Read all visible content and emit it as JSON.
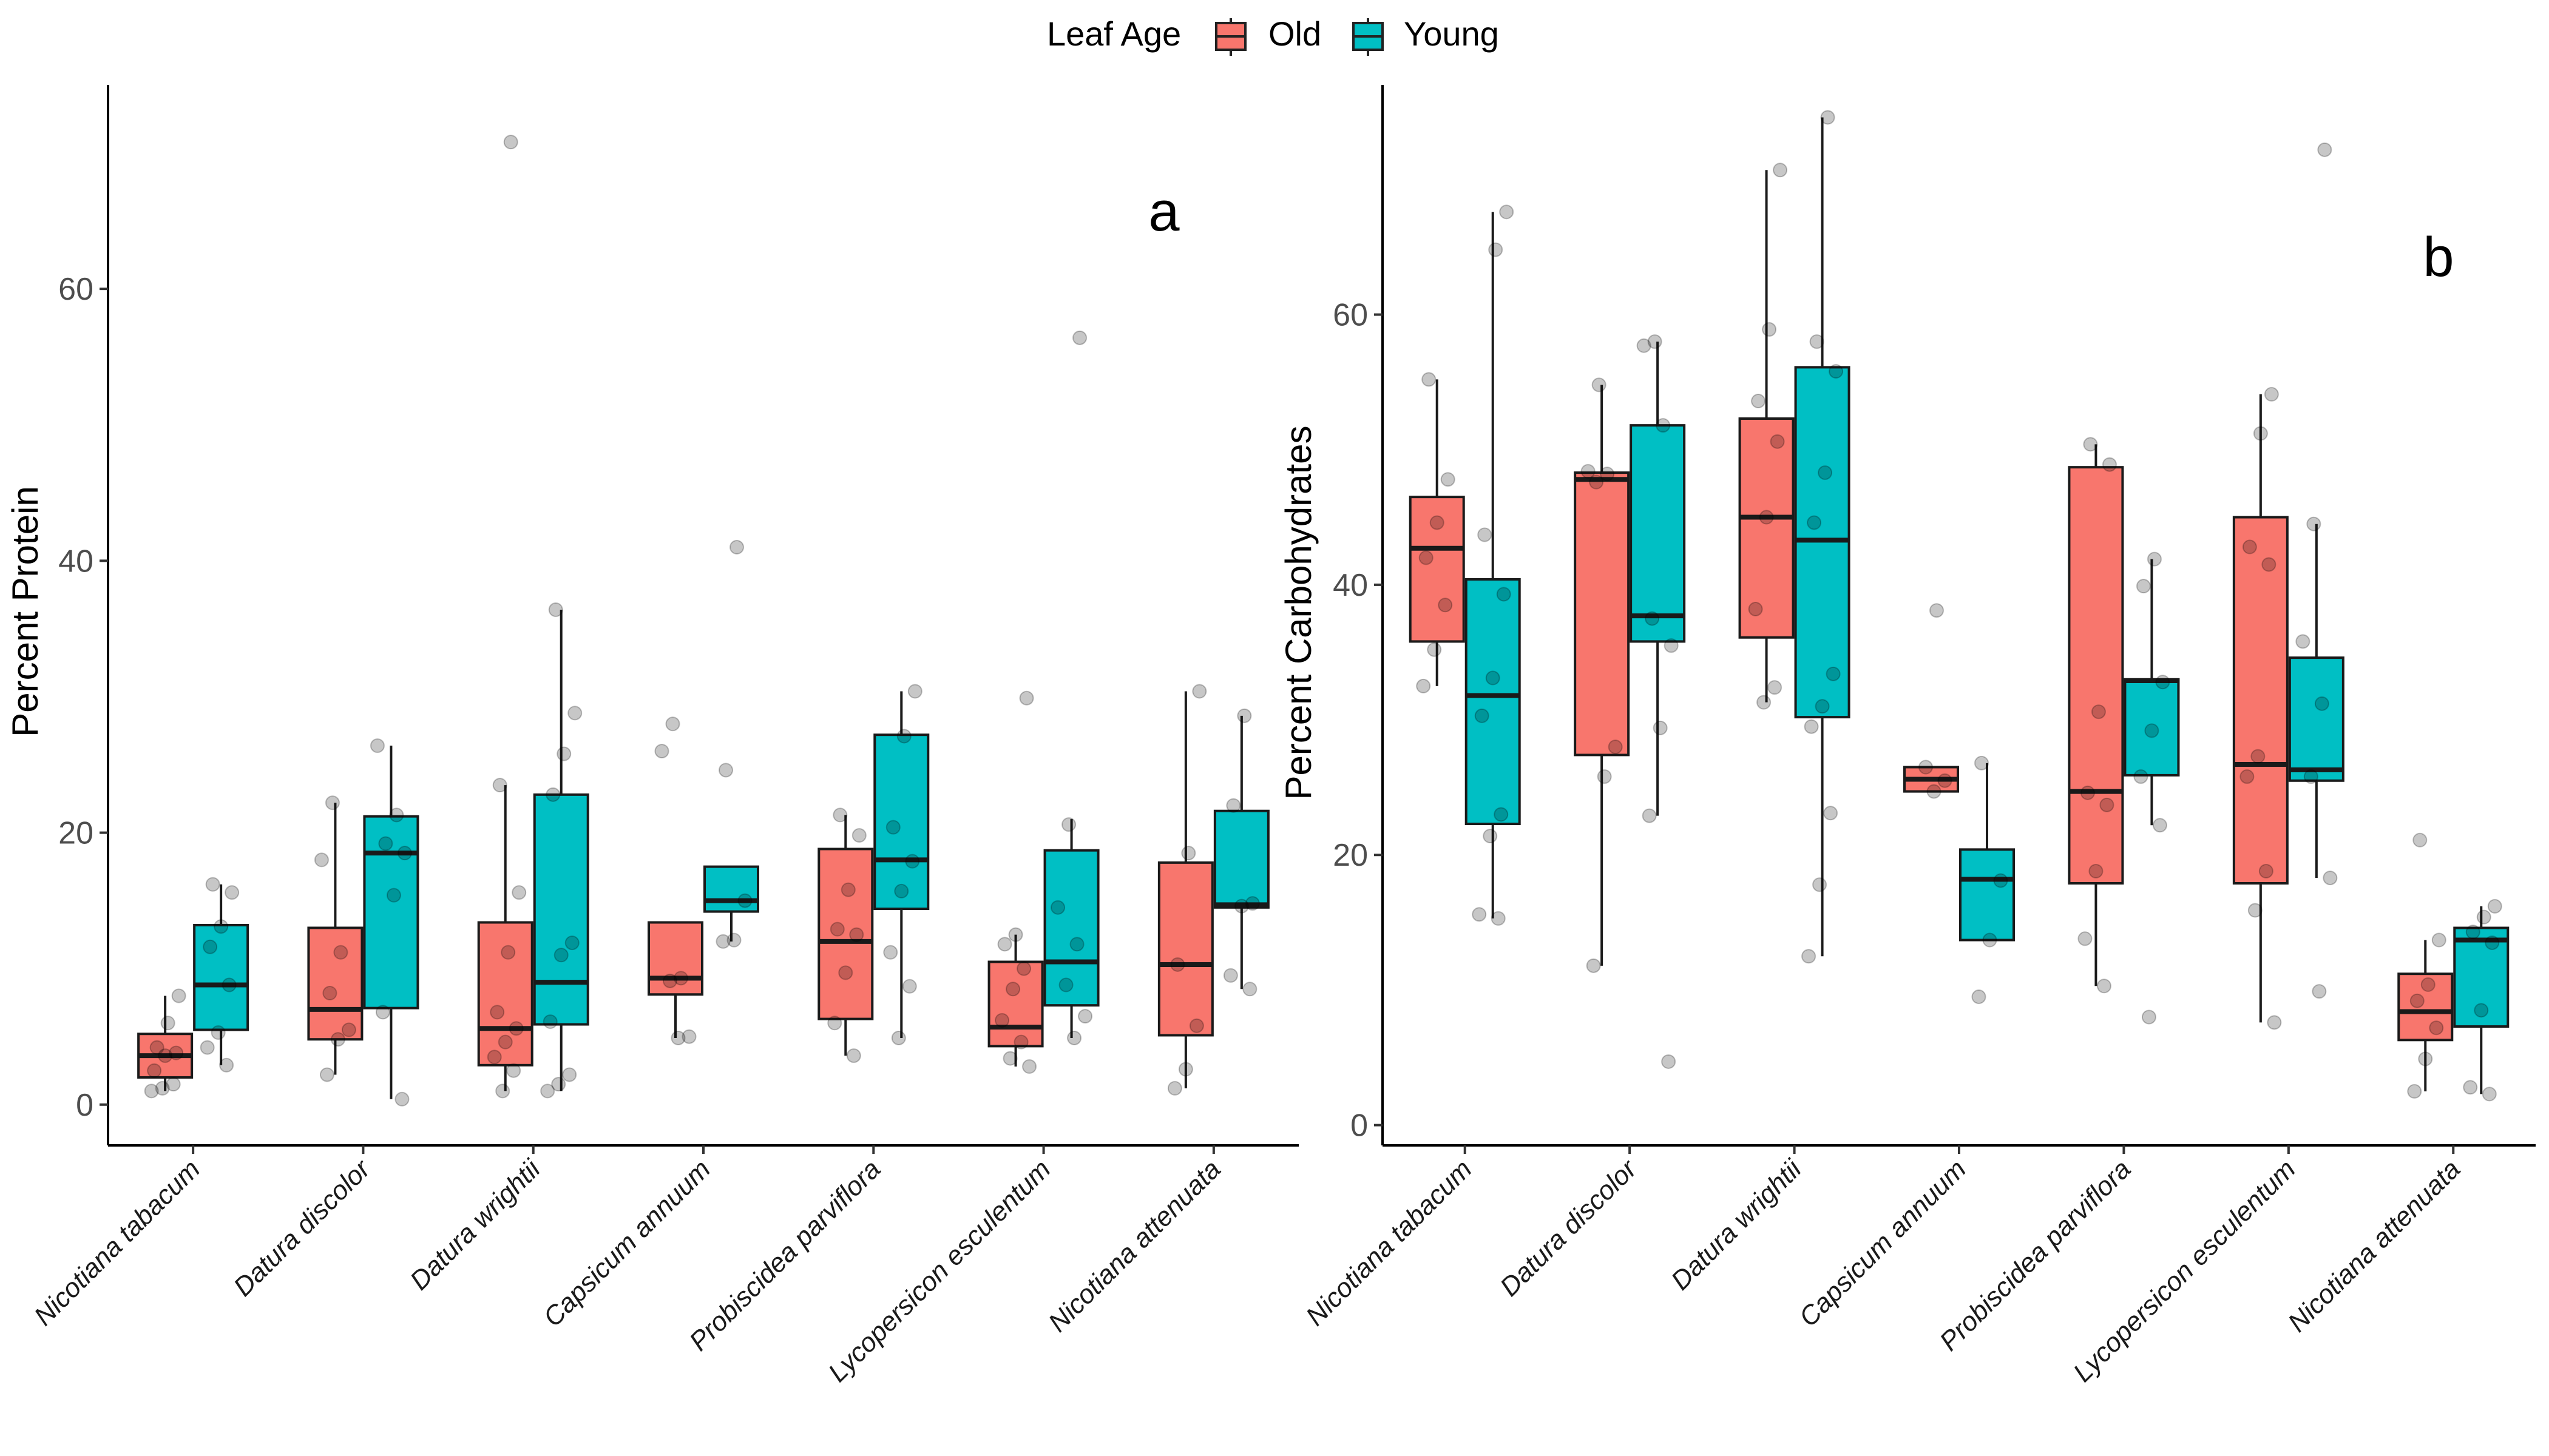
{
  "legend": {
    "title": "Leaf Age",
    "items": [
      {
        "label": "Old",
        "color": "#F8766D"
      },
      {
        "label": "Young",
        "color": "#00BFC4"
      }
    ]
  },
  "chart_data": [
    {
      "type": "box",
      "panel_label": "a",
      "ylabel": "Percent Protein",
      "xlabel": "",
      "ylim": [
        -3,
        75
      ],
      "yticks": [
        0,
        20,
        40,
        60
      ],
      "grid": false,
      "legend_position": "top",
      "categories": [
        "Nicotiana tabacum",
        "Datura discolor",
        "Datura wrightii",
        "Capsicum annuum",
        "Probiscidea parviflora",
        "Lycopersicon esculentum",
        "Nicotiana attenuata"
      ],
      "series": [
        {
          "name": "Old",
          "boxes": [
            {
              "min": 1.0,
              "q1": 2.0,
              "median": 3.6,
              "q3": 5.2,
              "max": 8.0,
              "points": [
                1.0,
                1.2,
                1.5,
                2.5,
                3.6,
                3.8,
                4.2,
                6.0,
                8.0
              ]
            },
            {
              "min": 2.2,
              "q1": 4.8,
              "median": 7.0,
              "q3": 13.0,
              "max": 22.2,
              "points": [
                2.2,
                4.8,
                5.5,
                8.2,
                11.2,
                18.0,
                22.2
              ]
            },
            {
              "min": 1.0,
              "q1": 2.9,
              "median": 5.6,
              "q3": 13.4,
              "max": 23.5,
              "points": [
                1.0,
                2.5,
                3.5,
                4.6,
                5.6,
                6.8,
                11.2,
                15.6,
                23.5,
                70.8
              ]
            },
            {
              "min": 4.9,
              "q1": 8.1,
              "median": 9.3,
              "q3": 13.4,
              "max": 13.4,
              "points": [
                4.9,
                5.0,
                9.1,
                9.3,
                26.0,
                28.0
              ]
            },
            {
              "min": 3.6,
              "q1": 6.3,
              "median": 12.0,
              "q3": 18.8,
              "max": 21.3,
              "points": [
                3.6,
                6.0,
                9.7,
                12.5,
                12.9,
                15.8,
                19.8,
                21.3
              ]
            },
            {
              "min": 2.8,
              "q1": 4.3,
              "median": 5.7,
              "q3": 10.5,
              "max": 12.5,
              "points": [
                2.8,
                3.4,
                4.6,
                6.2,
                8.5,
                10.0,
                11.8,
                12.5,
                29.9
              ]
            },
            {
              "min": 1.2,
              "q1": 5.1,
              "median": 10.3,
              "q3": 17.8,
              "max": 30.4,
              "points": [
                1.2,
                2.6,
                5.8,
                10.3,
                18.5,
                30.4
              ]
            }
          ]
        },
        {
          "name": "Young",
          "boxes": [
            {
              "min": 2.9,
              "q1": 5.5,
              "median": 8.8,
              "q3": 13.2,
              "max": 16.2,
              "points": [
                2.9,
                4.2,
                5.3,
                8.8,
                11.6,
                13.1,
                15.6,
                16.2
              ]
            },
            {
              "min": 0.4,
              "q1": 7.1,
              "median": 18.5,
              "q3": 21.2,
              "max": 26.4,
              "points": [
                0.4,
                6.8,
                15.4,
                18.5,
                19.2,
                21.3,
                26.4
              ]
            },
            {
              "min": 1.0,
              "q1": 5.9,
              "median": 9.0,
              "q3": 22.8,
              "max": 36.4,
              "points": [
                1.0,
                1.5,
                2.2,
                6.1,
                11.0,
                11.9,
                22.8,
                25.8,
                28.8,
                36.4
              ]
            },
            {
              "min": 12.0,
              "q1": 14.2,
              "median": 15.0,
              "q3": 17.5,
              "max": 17.5,
              "points": [
                12.0,
                12.1,
                15.0,
                24.6,
                41.0
              ]
            },
            {
              "min": 4.9,
              "q1": 14.4,
              "median": 18.0,
              "q3": 27.2,
              "max": 30.4,
              "points": [
                4.9,
                8.7,
                11.2,
                15.7,
                17.9,
                20.4,
                27.1,
                30.4
              ]
            },
            {
              "min": 4.9,
              "q1": 7.3,
              "median": 10.5,
              "q3": 18.7,
              "max": 21.0,
              "points": [
                4.9,
                6.5,
                8.8,
                11.8,
                14.5,
                20.6,
                56.4
              ]
            },
            {
              "min": 8.5,
              "q1": 14.5,
              "median": 14.7,
              "q3": 21.6,
              "max": 28.6,
              "points": [
                8.5,
                9.5,
                14.6,
                14.8,
                22.0,
                28.6
              ]
            }
          ]
        }
      ]
    },
    {
      "type": "box",
      "panel_label": "b",
      "ylabel": "Percent Carbohydrates",
      "xlabel": "",
      "ylim": [
        -1.5,
        77
      ],
      "yticks": [
        0,
        20,
        40,
        60
      ],
      "grid": false,
      "legend_position": "top",
      "categories": [
        "Nicotiana tabacum",
        "Datura discolor",
        "Datura wrightii",
        "Capsicum annuum",
        "Probiscidea parviflora",
        "Lycopersicon esculentum",
        "Nicotiana attenuata"
      ],
      "series": [
        {
          "name": "Old",
          "boxes": [
            {
              "min": 32.5,
              "q1": 35.8,
              "median": 42.7,
              "q3": 46.5,
              "max": 55.2,
              "points": [
                32.5,
                35.2,
                38.5,
                42.0,
                44.6,
                47.8,
                55.2
              ]
            },
            {
              "min": 11.8,
              "q1": 27.4,
              "median": 47.8,
              "q3": 48.3,
              "max": 54.8,
              "points": [
                11.8,
                25.8,
                28.0,
                47.6,
                48.2,
                48.4,
                54.8
              ]
            },
            {
              "min": 31.3,
              "q1": 36.1,
              "median": 45.0,
              "q3": 52.3,
              "max": 70.7,
              "points": [
                31.3,
                32.4,
                38.2,
                45.0,
                50.6,
                53.6,
                58.9,
                70.7
              ]
            },
            {
              "min": 24.7,
              "q1": 24.7,
              "median": 25.6,
              "q3": 26.5,
              "max": 26.5,
              "points": [
                24.7,
                25.5,
                26.5,
                38.1
              ]
            },
            {
              "min": 10.3,
              "q1": 17.9,
              "median": 24.7,
              "q3": 48.7,
              "max": 50.4,
              "points": [
                10.3,
                13.8,
                18.8,
                23.7,
                24.6,
                30.6,
                48.9,
                50.4
              ]
            },
            {
              "min": 7.6,
              "q1": 17.9,
              "median": 26.7,
              "q3": 45.0,
              "max": 54.1,
              "points": [
                7.6,
                15.9,
                18.8,
                25.8,
                27.3,
                41.5,
                42.8,
                51.2,
                54.1
              ]
            },
            {
              "min": 2.5,
              "q1": 6.3,
              "median": 8.4,
              "q3": 11.2,
              "max": 13.7,
              "points": [
                2.5,
                4.9,
                7.2,
                9.2,
                10.4,
                13.7,
                21.1
              ]
            }
          ]
        },
        {
          "name": "Young",
          "boxes": [
            {
              "min": 15.3,
              "q1": 22.3,
              "median": 31.8,
              "q3": 40.4,
              "max": 67.6,
              "points": [
                15.3,
                15.6,
                21.4,
                23.0,
                30.3,
                33.1,
                39.3,
                43.7,
                64.8,
                67.6
              ]
            },
            {
              "min": 22.9,
              "q1": 35.8,
              "median": 37.7,
              "q3": 51.8,
              "max": 58.0,
              "points": [
                4.7,
                22.9,
                29.4,
                35.5,
                37.5,
                51.8,
                57.7,
                58.0
              ]
            },
            {
              "min": 12.5,
              "q1": 30.2,
              "median": 43.3,
              "q3": 56.1,
              "max": 74.6,
              "points": [
                12.5,
                17.8,
                23.1,
                29.5,
                31.0,
                33.4,
                44.6,
                48.3,
                55.8,
                58.0,
                74.6
              ]
            },
            {
              "min": 13.7,
              "q1": 13.7,
              "median": 18.2,
              "q3": 20.4,
              "max": 26.8,
              "points": [
                9.5,
                13.7,
                18.1,
                26.8
              ]
            },
            {
              "min": 22.2,
              "q1": 25.9,
              "median": 32.9,
              "q3": 33.0,
              "max": 41.9,
              "points": [
                8.0,
                22.2,
                25.8,
                29.2,
                32.8,
                39.9,
                41.9
              ]
            },
            {
              "min": 18.3,
              "q1": 25.5,
              "median": 26.3,
              "q3": 34.6,
              "max": 44.5,
              "points": [
                9.9,
                18.3,
                25.8,
                31.2,
                35.8,
                44.5,
                72.2
              ]
            },
            {
              "min": 2.3,
              "q1": 7.3,
              "median": 13.7,
              "q3": 14.6,
              "max": 16.2,
              "points": [
                2.3,
                2.8,
                8.5,
                13.5,
                14.3,
                15.4,
                16.2
              ]
            }
          ]
        }
      ]
    }
  ]
}
